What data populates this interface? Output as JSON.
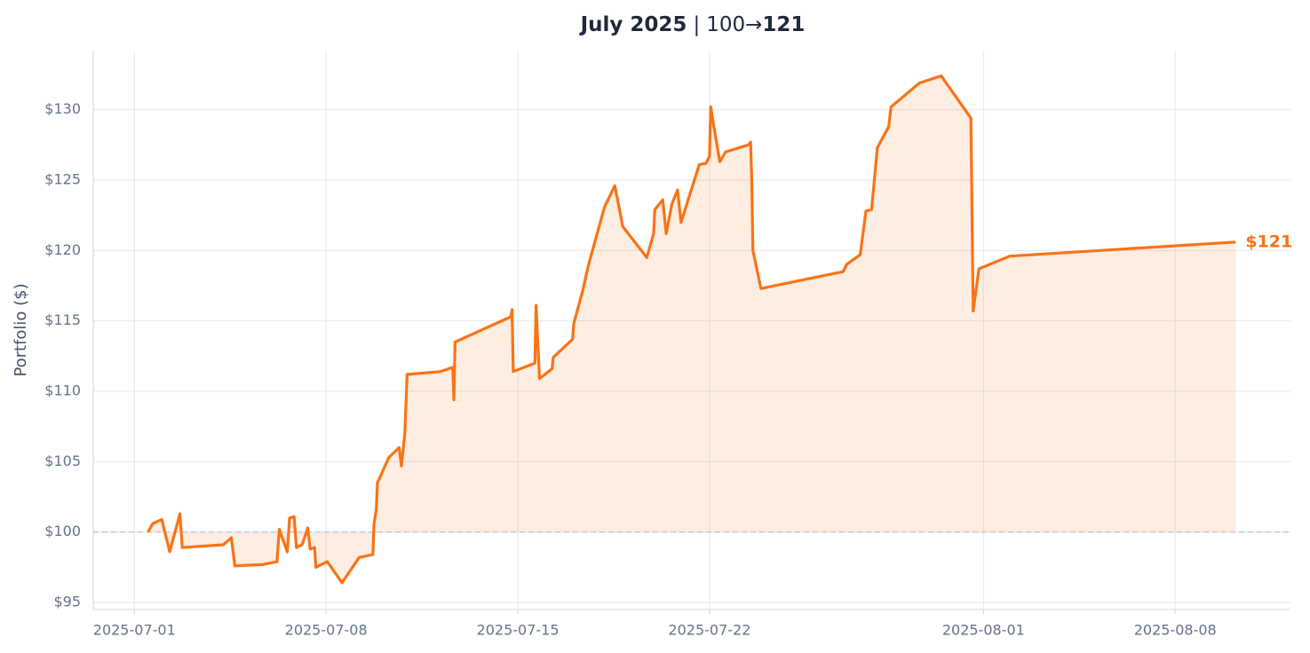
{
  "chart_data": {
    "type": "line",
    "title_parts": [
      "July 2025",
      "|",
      "100→",
      "121"
    ],
    "y_label": "Portfolio ($)",
    "color": "#f97316",
    "reference_line": 100,
    "end_label": "$121",
    "grid": true,
    "x": [
      "2025-07-01T12:00",
      "2025-07-01T16:00",
      "2025-07-02T00:00",
      "2025-07-02T07:00",
      "2025-07-02T16:00",
      "2025-07-02T18:00",
      "2025-07-04T06:00",
      "2025-07-04T13:00",
      "2025-07-04T16:00",
      "2025-07-05T17:00",
      "2025-07-06T05:00",
      "2025-07-06T07:00",
      "2025-07-06T14:00",
      "2025-07-06T16:00",
      "2025-07-06T20:00",
      "2025-07-06T22:00",
      "2025-07-07T03:00",
      "2025-07-07T08:00",
      "2025-07-07T10:00",
      "2025-07-07T14:00",
      "2025-07-07T15:00",
      "2025-07-08T01:00",
      "2025-07-08T14:00",
      "2025-07-09T05:00",
      "2025-07-09T17:00",
      "2025-07-09T18:00",
      "2025-07-09T20:00",
      "2025-07-09T21:00",
      "2025-07-10T07:00",
      "2025-07-10T16:00",
      "2025-07-10T18:00",
      "2025-07-10T21:00",
      "2025-07-10T23:00",
      "2025-07-12T04:00",
      "2025-07-12T15:00",
      "2025-07-12T16:00",
      "2025-07-12T17:00",
      "2025-07-14T18:00",
      "2025-07-14T19:00",
      "2025-07-14T20:00",
      "2025-07-15T15:00",
      "2025-07-15T16:00",
      "2025-07-15T19:00",
      "2025-07-16T06:00",
      "2025-07-16T07:00",
      "2025-07-17T00:00",
      "2025-07-17T01:00",
      "2025-07-17T09:00",
      "2025-07-17T14:00",
      "2025-07-18T04:00",
      "2025-07-18T13:00",
      "2025-07-18T20:00",
      "2025-07-19T17:00",
      "2025-07-19T23:00",
      "2025-07-20T00:00",
      "2025-07-20T07:00",
      "2025-07-20T10:00",
      "2025-07-20T15:00",
      "2025-07-20T20:00",
      "2025-07-20T23:00",
      "2025-07-21T15:00",
      "2025-07-21T21:00",
      "2025-07-22T00:00",
      "2025-07-22T01:00",
      "2025-07-22T03:00",
      "2025-07-22T09:00",
      "2025-07-22T14:00",
      "2025-07-23T10:00",
      "2025-07-23T12:00",
      "2025-07-23T13:00",
      "2025-07-23T14:00",
      "2025-07-23T21:00",
      "2025-07-26T21:00",
      "2025-07-27T00:00",
      "2025-07-27T12:00",
      "2025-07-27T17:00",
      "2025-07-27T22:00",
      "2025-07-28T03:00",
      "2025-07-28T13:00",
      "2025-07-28T15:00",
      "2025-07-29T16:00",
      "2025-07-30T11:00",
      "2025-07-31T13:00",
      "2025-07-31T15:00",
      "2025-07-31T20:00",
      "2025-08-01T23:00",
      "2025-08-10T05:00"
    ],
    "values": [
      100.0,
      100.6,
      100.9,
      98.6,
      101.3,
      98.9,
      99.1,
      99.6,
      97.6,
      97.7,
      97.9,
      100.2,
      98.6,
      101.0,
      101.1,
      98.9,
      99.1,
      100.3,
      98.8,
      98.9,
      97.5,
      97.9,
      96.4,
      98.2,
      98.4,
      100.6,
      101.6,
      103.5,
      105.3,
      106.0,
      104.7,
      107.0,
      111.2,
      111.4,
      111.7,
      109.4,
      113.5,
      115.3,
      115.8,
      111.4,
      112.0,
      116.1,
      110.9,
      111.6,
      112.4,
      113.7,
      114.8,
      117.2,
      119.0,
      123.1,
      124.6,
      121.7,
      119.5,
      121.2,
      122.9,
      123.6,
      121.2,
      123.3,
      124.3,
      122.0,
      126.1,
      126.2,
      126.7,
      130.2,
      129.2,
      126.3,
      127.0,
      127.5,
      127.7,
      125.0,
      120.0,
      117.3,
      118.5,
      119.0,
      119.7,
      122.8,
      122.9,
      127.3,
      128.8,
      130.2,
      131.9,
      132.4,
      129.4,
      115.7,
      118.7,
      119.6,
      120.6
    ],
    "xlim": [
      "2025-06-29T12:00",
      "2025-08-12T05:00"
    ],
    "xticks": [
      "2025-07-01",
      "2025-07-08",
      "2025-07-15",
      "2025-07-22",
      "2025-08-01",
      "2025-08-08"
    ],
    "ylim": [
      94.5,
      134.2
    ],
    "yticks": [
      {
        "value": 95,
        "label": "$95"
      },
      {
        "value": 100,
        "label": "$100"
      },
      {
        "value": 105,
        "label": "$105"
      },
      {
        "value": 110,
        "label": "$110"
      },
      {
        "value": 115,
        "label": "$115"
      },
      {
        "value": 120,
        "label": "$120"
      },
      {
        "value": 125,
        "label": "$125"
      },
      {
        "value": 130,
        "label": "$130"
      }
    ]
  }
}
